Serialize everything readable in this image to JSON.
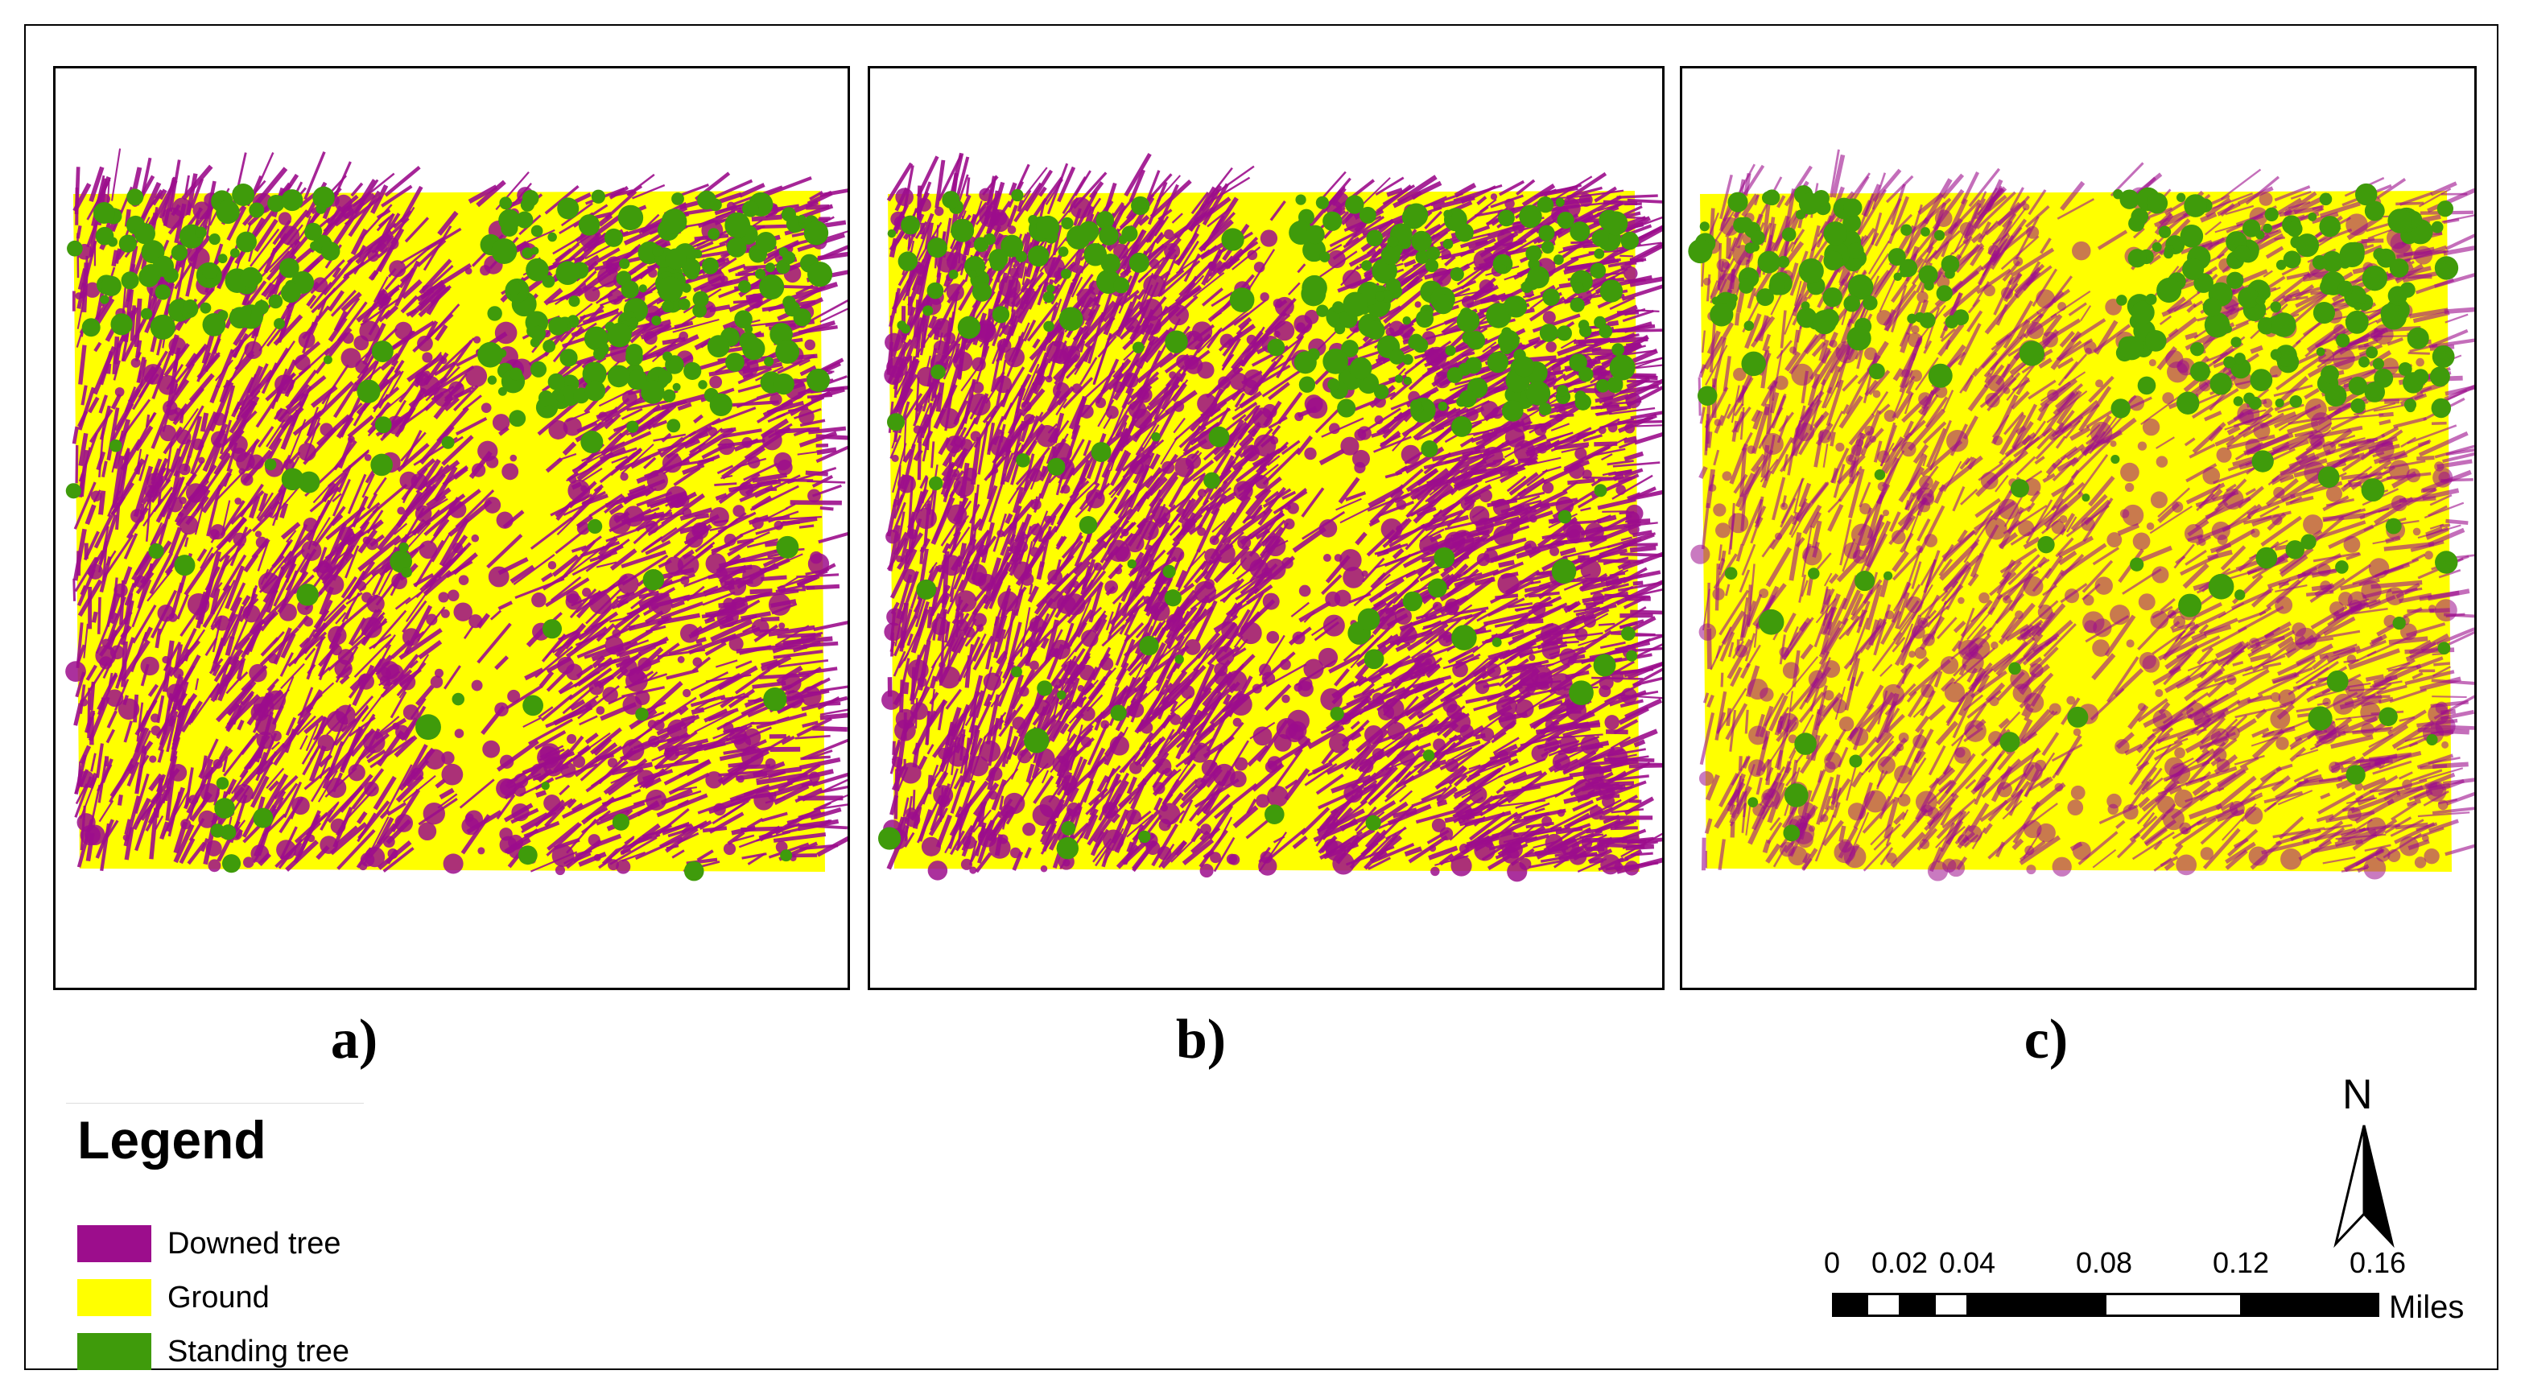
{
  "panels": [
    {
      "label": "a)"
    },
    {
      "label": "b)"
    },
    {
      "label": "c)"
    }
  ],
  "legend": {
    "title": "Legend",
    "items": [
      {
        "label": "Downed tree",
        "color": "#9c0d8c"
      },
      {
        "label": "Ground",
        "color": "#ffff00"
      },
      {
        "label": "Standing tree",
        "color": "#3f9b0b"
      }
    ]
  },
  "scalebar": {
    "ticks": [
      "0",
      "0.02",
      "0.04",
      "0.08",
      "0.12",
      "0.16"
    ],
    "units": "Miles"
  },
  "north_arrow": {
    "letter": "N",
    "icon": "north-arrow-icon"
  }
}
